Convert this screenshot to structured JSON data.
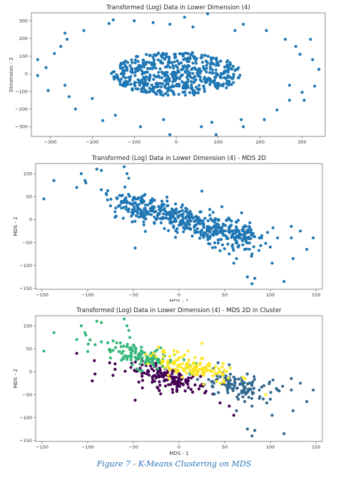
{
  "caption": "Figure 7 - K-Means Clustering on MDS",
  "chart_data": [
    {
      "type": "scatter",
      "title": "Transformed (Log) Data in Lower Dimension (4)",
      "xlabel": "Dimension - 1",
      "ylabel": "Dimension - 2",
      "xlim": [
        -345,
        355
      ],
      "ylim": [
        -355,
        345
      ],
      "xticks": [
        -300,
        -200,
        -100,
        0,
        100,
        200,
        300
      ],
      "yticks": [
        -300,
        -200,
        -100,
        0,
        100,
        200,
        300
      ],
      "color": "#1f77b4",
      "grid": false,
      "cloud": {
        "center": [
          0,
          0
        ],
        "rx": 155,
        "ry": 125,
        "count": 560
      },
      "points": [
        [
          -330,
          80
        ],
        [
          -330,
          -10
        ],
        [
          -310,
          35
        ],
        [
          -305,
          -95
        ],
        [
          -290,
          115
        ],
        [
          -275,
          155
        ],
        [
          -265,
          230
        ],
        [
          -260,
          195
        ],
        [
          -265,
          -65
        ],
        [
          -255,
          -130
        ],
        [
          -240,
          -200
        ],
        [
          -220,
          245
        ],
        [
          -200,
          -140
        ],
        [
          -175,
          -265
        ],
        [
          -160,
          285
        ],
        [
          -150,
          305
        ],
        [
          -145,
          -235
        ],
        [
          -100,
          300
        ],
        [
          -85,
          -300
        ],
        [
          -55,
          290
        ],
        [
          -30,
          -260
        ],
        [
          -15,
          280
        ],
        [
          -15,
          -345
        ],
        [
          20,
          320
        ],
        [
          40,
          265
        ],
        [
          60,
          -300
        ],
        [
          75,
          340
        ],
        [
          85,
          -275
        ],
        [
          95,
          -345
        ],
        [
          140,
          245
        ],
        [
          155,
          -260
        ],
        [
          160,
          280
        ],
        [
          160,
          -300
        ],
        [
          210,
          -260
        ],
        [
          215,
          245
        ],
        [
          240,
          -205
        ],
        [
          260,
          195
        ],
        [
          270,
          -150
        ],
        [
          270,
          -65
        ],
        [
          285,
          155
        ],
        [
          300,
          -105
        ],
        [
          305,
          -150
        ],
        [
          325,
          80
        ],
        [
          330,
          -70
        ],
        [
          340,
          25
        ],
        [
          320,
          195
        ],
        [
          295,
          110
        ]
      ]
    },
    {
      "type": "scatter",
      "title": "Transformed (Log) Data in Lower Dimension (4) - MDS 2D",
      "xlabel": "MDS - 1",
      "ylabel": "MDS - 2",
      "xlim": [
        -157,
        157
      ],
      "ylim": [
        -152,
        122
      ],
      "xticks": [
        -150,
        -100,
        -50,
        0,
        50,
        100,
        150
      ],
      "yticks": [
        -150,
        -100,
        -50,
        0,
        50,
        100
      ],
      "color": "#1f77b4",
      "grid": false,
      "trend": {
        "x": [
          -65,
          75
        ],
        "y": [
          40,
          -40
        ]
      },
      "cloud": {
        "count": 520
      },
      "points": [
        [
          -148,
          45
        ],
        [
          -137,
          85
        ],
        [
          -112,
          70
        ],
        [
          -107,
          100
        ],
        [
          -103,
          85
        ],
        [
          -102,
          80
        ],
        [
          -90,
          110
        ],
        [
          -85,
          107
        ],
        [
          -85,
          65
        ],
        [
          -78,
          63
        ],
        [
          -75,
          30
        ],
        [
          -70,
          17
        ],
        [
          -70,
          5
        ],
        [
          -63,
          25
        ],
        [
          -60,
          115
        ],
        [
          -57,
          100
        ],
        [
          -55,
          90
        ],
        [
          -48,
          -62
        ],
        [
          -40,
          43
        ],
        [
          25,
          62
        ],
        [
          45,
          -68
        ],
        [
          55,
          -75
        ],
        [
          60,
          -95
        ],
        [
          63,
          -85
        ],
        [
          65,
          -60
        ],
        [
          70,
          -55
        ],
        [
          72,
          -65
        ],
        [
          75,
          -125
        ],
        [
          80,
          -75
        ],
        [
          80,
          -140
        ],
        [
          83,
          -128
        ],
        [
          88,
          -40
        ],
        [
          95,
          -52
        ],
        [
          100,
          -60
        ],
        [
          102,
          -95
        ],
        [
          108,
          -40
        ],
        [
          115,
          -135
        ],
        [
          123,
          -15
        ],
        [
          123,
          -40
        ],
        [
          125,
          -85
        ],
        [
          133,
          -25
        ],
        [
          140,
          -65
        ],
        [
          147,
          -40
        ],
        [
          103,
          -18
        ],
        [
          97,
          -28
        ]
      ]
    },
    {
      "type": "scatter",
      "title": "Transformed (Log) Data in Lower Dimension (4) - MDS 2D in Cluster",
      "xlabel": "MDS - 1",
      "ylabel": "MDS - 2",
      "xlim": [
        -157,
        157
      ],
      "ylim": [
        -152,
        122
      ],
      "xticks": [
        -150,
        -100,
        -50,
        0,
        50,
        100,
        150
      ],
      "yticks": [
        -150,
        -100,
        -50,
        0,
        50,
        100
      ],
      "grid": false,
      "colors": [
        "#440154",
        "#31688e",
        "#35b779",
        "#fde725"
      ],
      "clusters": [
        {
          "center": [
            -10,
            -15
          ],
          "count": 150
        },
        {
          "center": [
            55,
            -25
          ],
          "count": 110
        },
        {
          "center": [
            -45,
            35
          ],
          "count": 120
        },
        {
          "center": [
            15,
            10
          ],
          "count": 140
        }
      ],
      "points": [
        [
          -148,
          45,
          2
        ],
        [
          -137,
          85,
          2
        ],
        [
          -112,
          70,
          2
        ],
        [
          -107,
          100,
          2
        ],
        [
          -103,
          85,
          2
        ],
        [
          -102,
          80,
          2
        ],
        [
          -90,
          110,
          2
        ],
        [
          -85,
          107,
          2
        ],
        [
          -85,
          65,
          2
        ],
        [
          -78,
          63,
          2
        ],
        [
          -75,
          30,
          2
        ],
        [
          -63,
          25,
          2
        ],
        [
          -60,
          115,
          2
        ],
        [
          -57,
          100,
          2
        ],
        [
          -55,
          90,
          2
        ],
        [
          -40,
          43,
          2
        ],
        [
          -112,
          40,
          0
        ],
        [
          -95,
          -20,
          0
        ],
        [
          -92,
          -5,
          0
        ],
        [
          -70,
          5,
          0
        ],
        [
          -70,
          17,
          0
        ],
        [
          -48,
          -62,
          0
        ],
        [
          25,
          62,
          3
        ],
        [
          10,
          45,
          3
        ],
        [
          95,
          -50,
          3
        ],
        [
          45,
          -68,
          0
        ],
        [
          55,
          -75,
          0
        ],
        [
          60,
          -95,
          0
        ],
        [
          63,
          -85,
          1
        ],
        [
          65,
          -60,
          1
        ],
        [
          70,
          -55,
          1
        ],
        [
          72,
          -65,
          1
        ],
        [
          75,
          -125,
          1
        ],
        [
          80,
          -75,
          1
        ],
        [
          80,
          -140,
          1
        ],
        [
          83,
          -128,
          1
        ],
        [
          88,
          -40,
          1
        ],
        [
          100,
          -60,
          1
        ],
        [
          102,
          -95,
          1
        ],
        [
          108,
          -40,
          1
        ],
        [
          115,
          -135,
          1
        ],
        [
          123,
          -15,
          1
        ],
        [
          123,
          -40,
          1
        ],
        [
          125,
          -85,
          1
        ],
        [
          133,
          -25,
          1
        ],
        [
          140,
          -65,
          1
        ],
        [
          147,
          -40,
          1
        ],
        [
          103,
          -18,
          1
        ]
      ]
    }
  ]
}
